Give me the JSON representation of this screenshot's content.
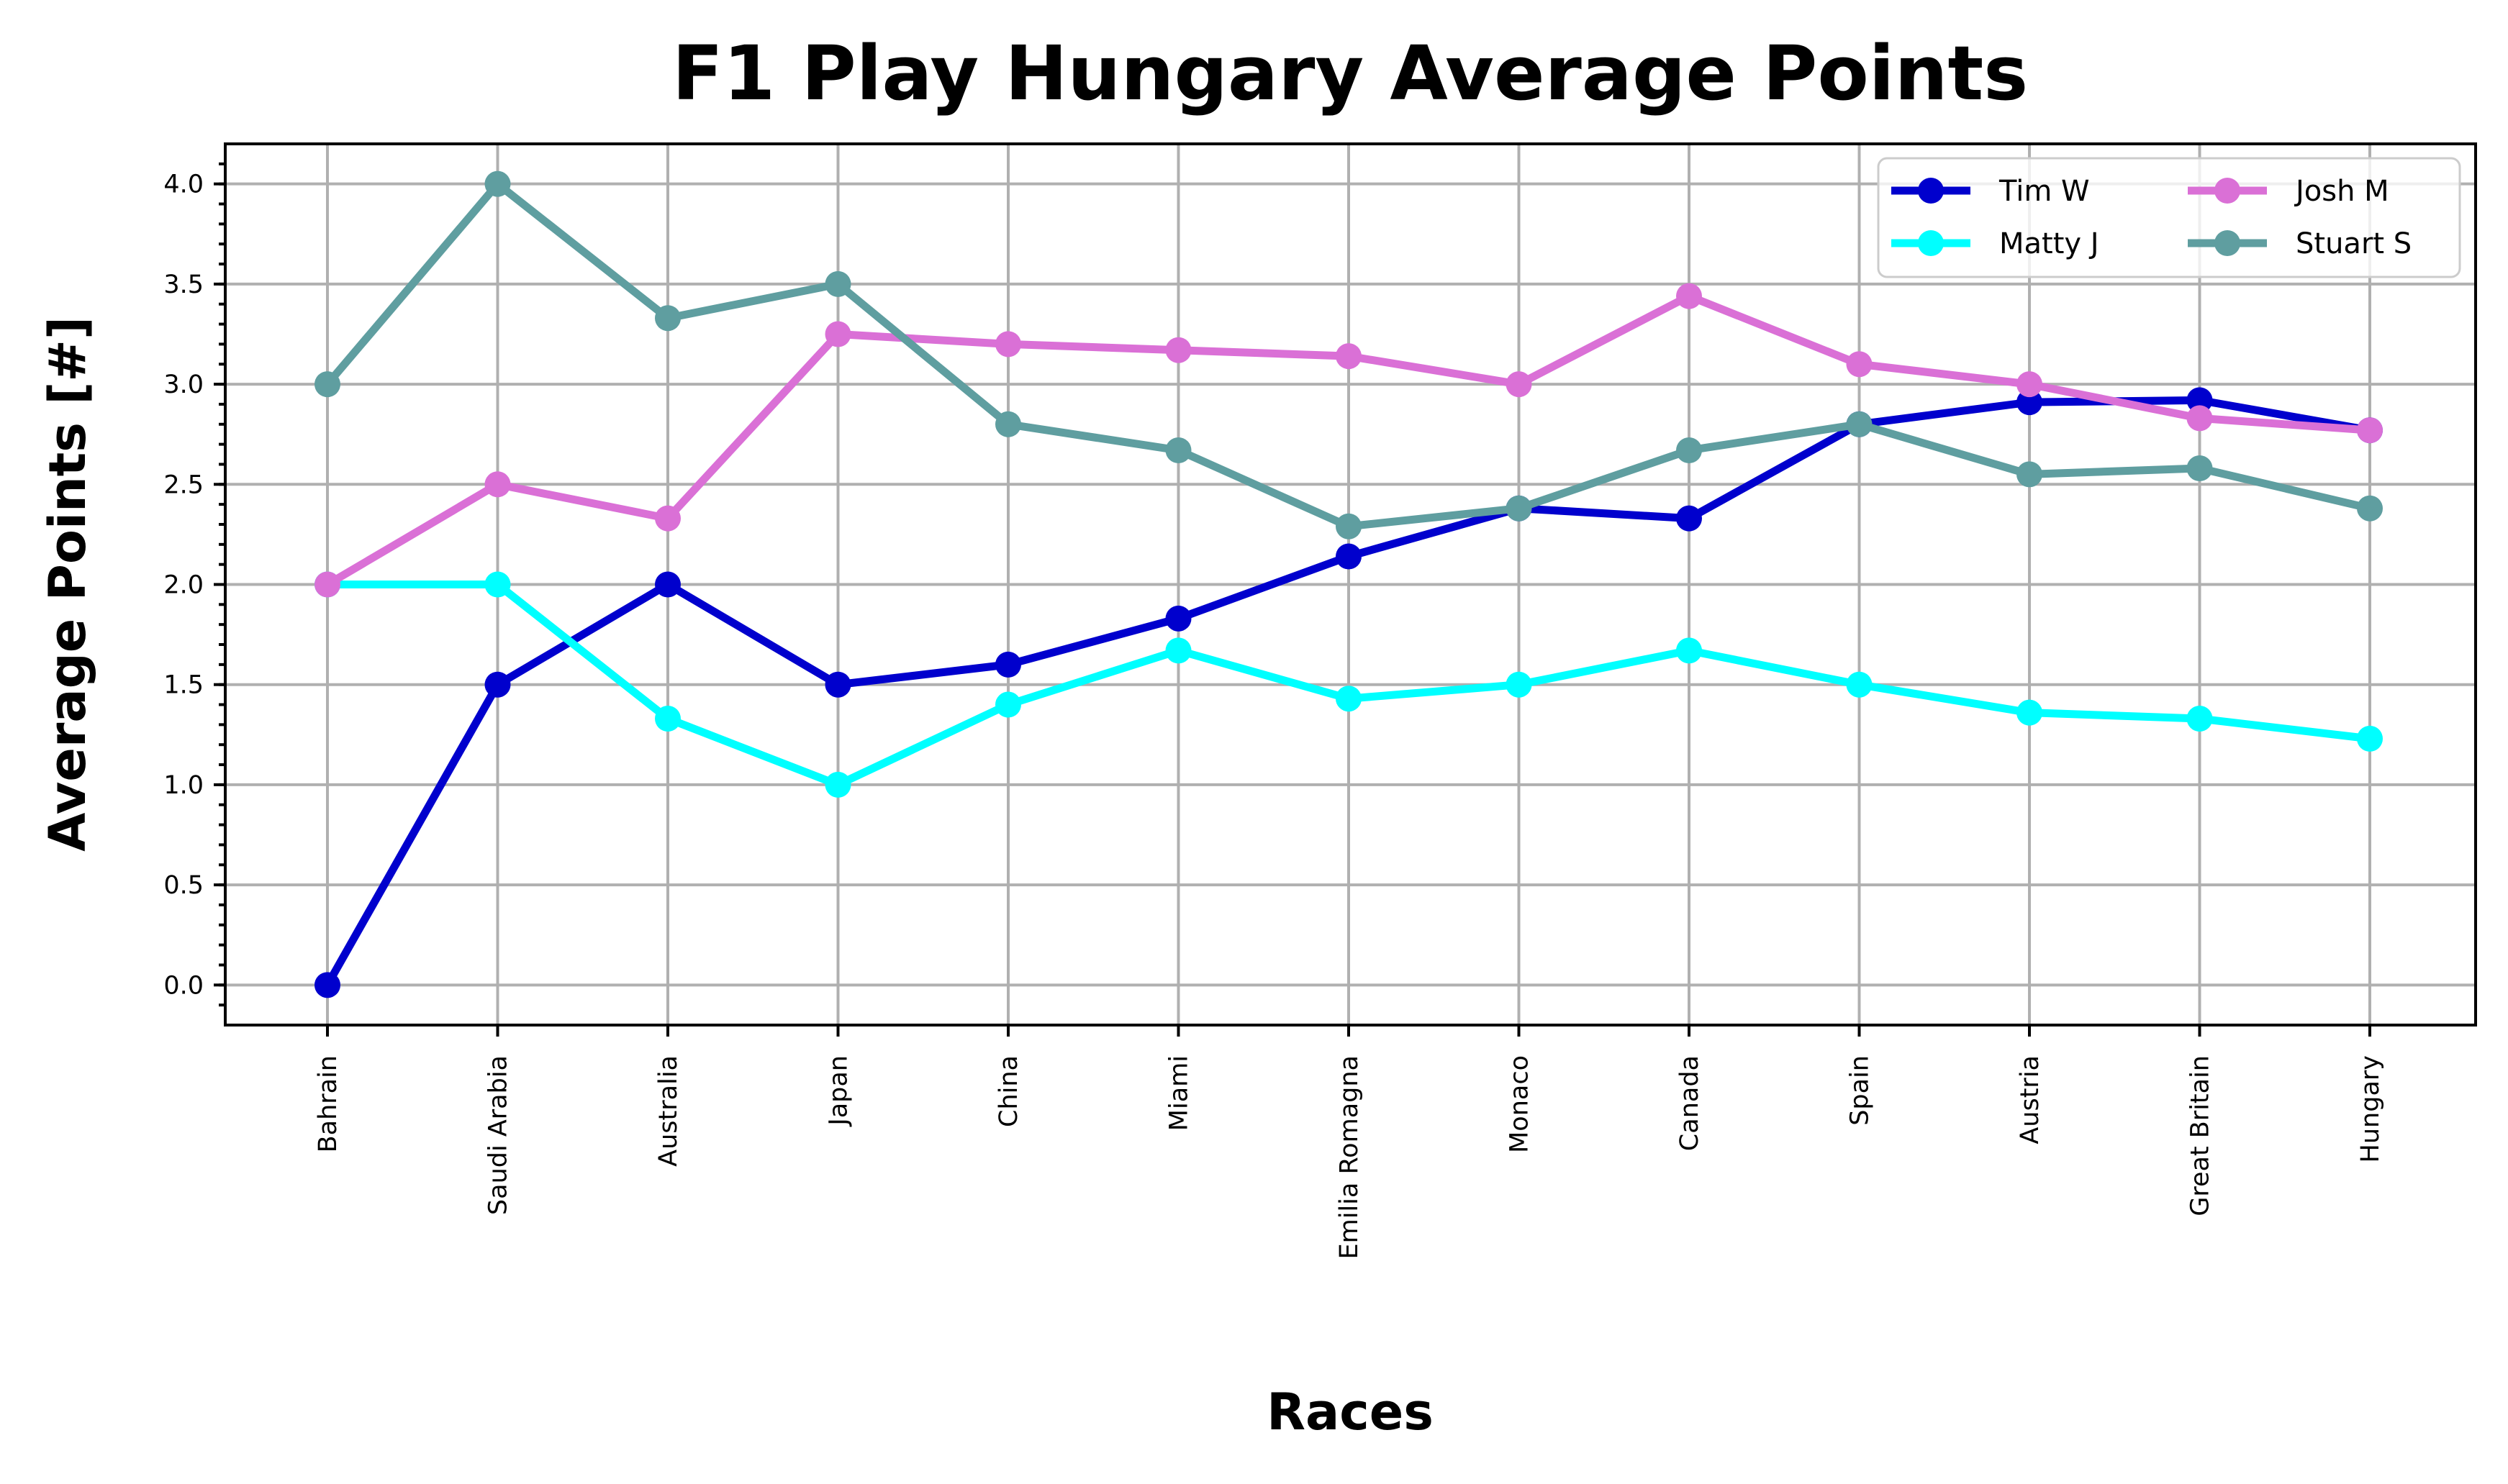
{
  "chart_data": {
    "type": "line",
    "title": "F1 Play Hungary Average Points",
    "xlabel": "Races",
    "ylabel": "Average Points [#]",
    "categories": [
      "Bahrain",
      "Saudi Arabia",
      "Australia",
      "Japan",
      "China",
      "Miami",
      "Emilia Romagna",
      "Monaco",
      "Canada",
      "Spain",
      "Austria",
      "Great Britain",
      "Hungary"
    ],
    "ylim": [
      -0.2,
      4.2
    ],
    "yticks": [
      "0.0",
      "0.5",
      "1.0",
      "1.5",
      "2.0",
      "2.5",
      "3.0",
      "3.5",
      "4.0"
    ],
    "grid": true,
    "legend_position": "top-right",
    "series": [
      {
        "name": "Tim W",
        "color": "#0000cd",
        "values": [
          0.0,
          1.5,
          2.0,
          1.5,
          1.6,
          1.83,
          2.14,
          2.38,
          2.33,
          2.8,
          2.91,
          2.92,
          2.77
        ]
      },
      {
        "name": "Matty J",
        "color": "#00ffff",
        "values": [
          2.0,
          2.0,
          1.33,
          1.0,
          1.4,
          1.67,
          1.43,
          1.5,
          1.67,
          1.5,
          1.36,
          1.33,
          1.23
        ]
      },
      {
        "name": "Josh M",
        "color": "#da70d6",
        "values": [
          2.0,
          2.5,
          2.33,
          3.25,
          3.2,
          3.17,
          3.14,
          3.0,
          3.44,
          3.1,
          3.0,
          2.83,
          2.77
        ]
      },
      {
        "name": "Stuart S",
        "color": "#5f9ea0",
        "values": [
          3.0,
          4.0,
          3.33,
          3.5,
          2.8,
          2.67,
          2.29,
          2.38,
          2.67,
          2.8,
          2.55,
          2.58,
          2.38
        ]
      }
    ]
  }
}
